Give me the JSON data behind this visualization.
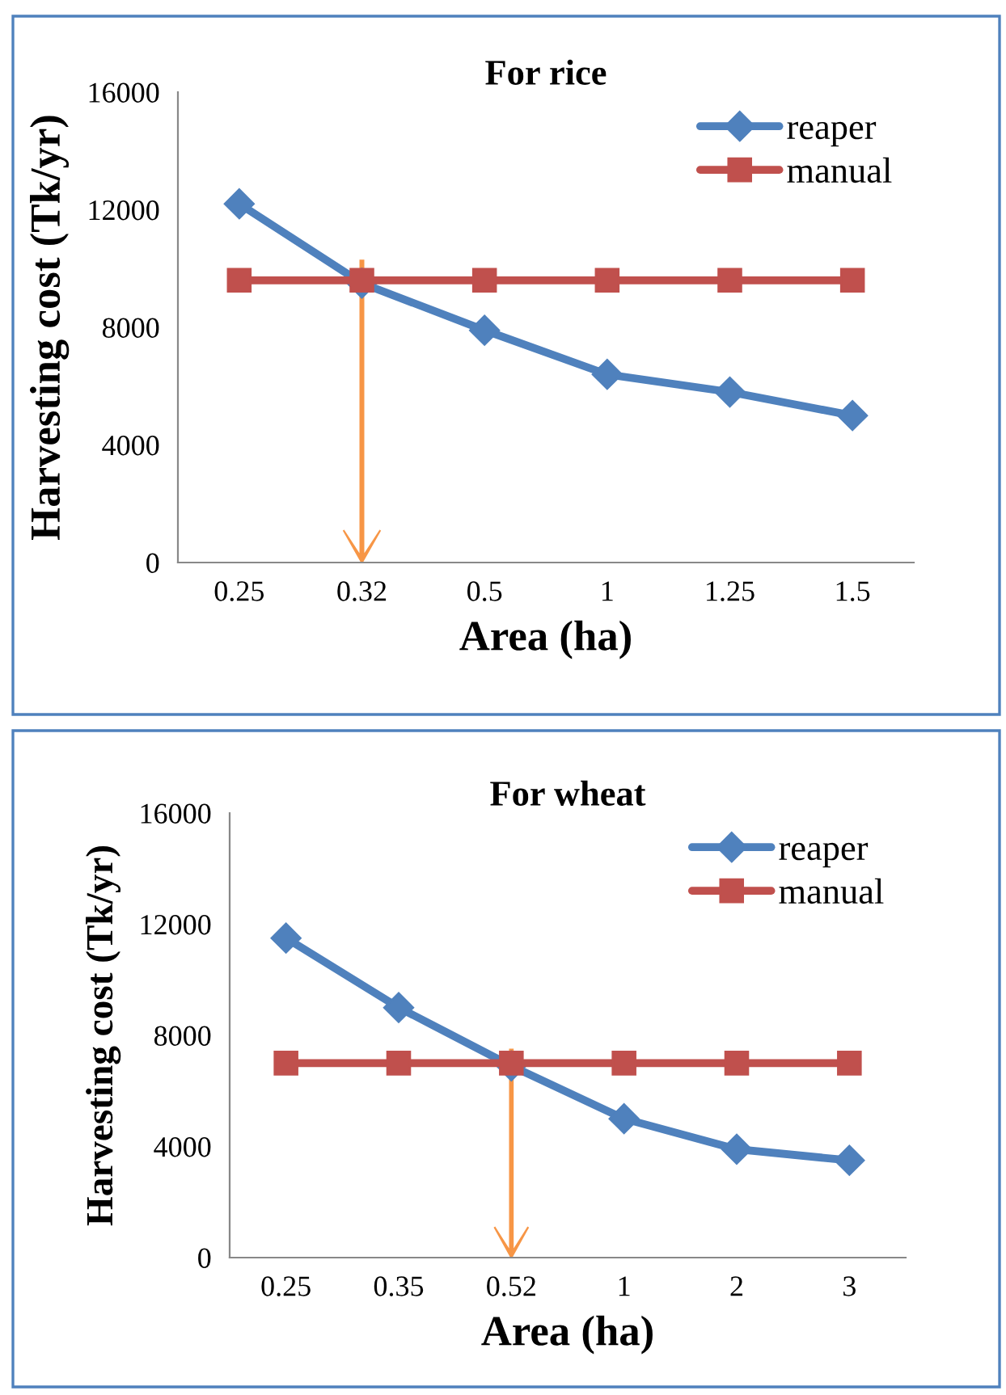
{
  "chart_data": [
    {
      "type": "line",
      "title": "For rice",
      "xlabel": "Area (ha)",
      "ylabel": "Harvesting cost (Tk/yr)",
      "categories": [
        "0.25",
        "0.32",
        "0.5",
        "1",
        "1.25",
        "1.5"
      ],
      "series": [
        {
          "name": "reaper",
          "color": "#4f81bd",
          "marker": "diamond",
          "values": [
            12200,
            9500,
            7900,
            6400,
            5800,
            5000
          ]
        },
        {
          "name": "manual",
          "color": "#c0504d",
          "marker": "square",
          "values": [
            9600,
            9600,
            9600,
            9600,
            9600,
            9600
          ]
        }
      ],
      "ylim": [
        0,
        16000
      ],
      "yticks": [
        0,
        4000,
        8000,
        12000,
        16000
      ],
      "grid": false,
      "legend": "top right"
    },
    {
      "type": "line",
      "title": "For wheat",
      "xlabel": "Area (ha)",
      "ylabel": "Harvesting cost (Tk/yr)",
      "categories": [
        "0.25",
        "0.35",
        "0.52",
        "1",
        "2",
        "3"
      ],
      "series": [
        {
          "name": "reaper",
          "color": "#4f81bd",
          "marker": "diamond",
          "values": [
            11500,
            9000,
            6900,
            5000,
            3900,
            3500
          ]
        },
        {
          "name": "manual",
          "color": "#c0504d",
          "marker": "square",
          "values": [
            7000,
            7000,
            7000,
            7000,
            7000,
            7000
          ]
        }
      ],
      "ylim": [
        0,
        16000
      ],
      "yticks": [
        0,
        4000,
        8000,
        12000,
        16000
      ],
      "grid": false,
      "legend": "top right"
    }
  ]
}
